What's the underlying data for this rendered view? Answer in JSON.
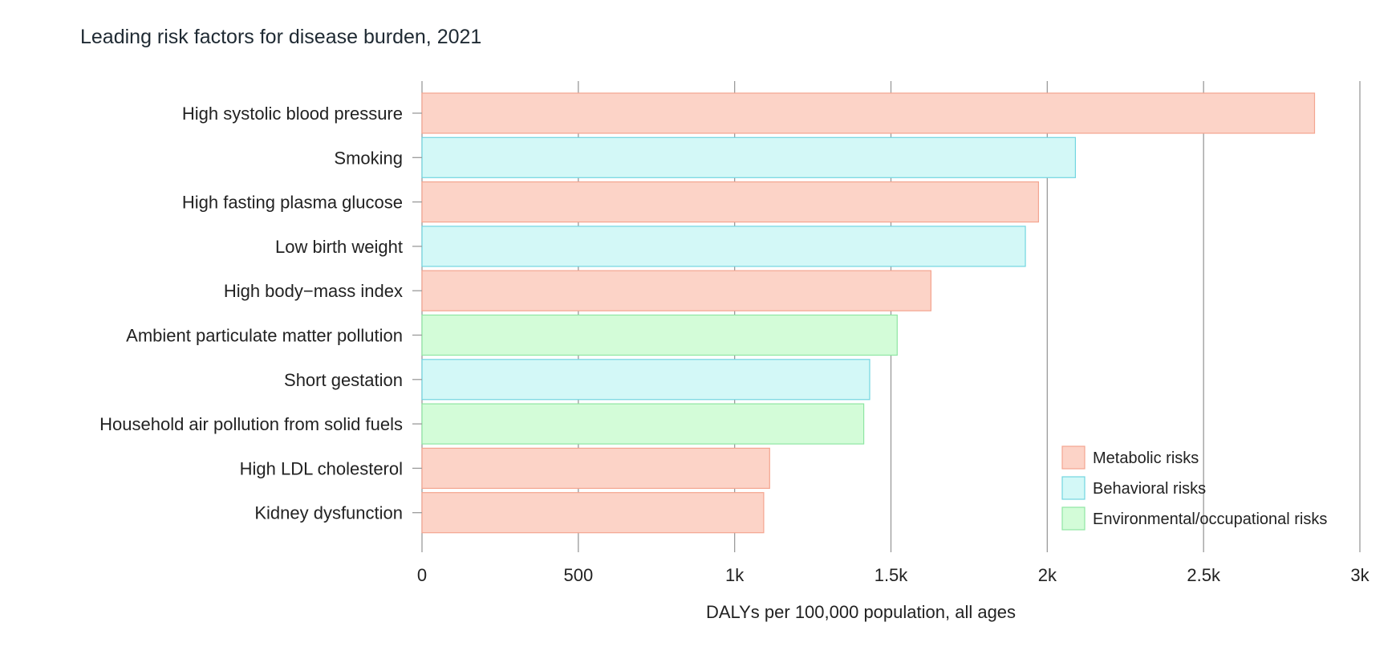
{
  "chart_data": {
    "type": "bar",
    "orientation": "horizontal",
    "title": "Leading risk factors for disease burden, 2021",
    "xlabel": "DALYs per 100,000 population, all ages",
    "ylabel": "",
    "xlim": [
      0,
      3000
    ],
    "xticks": [
      0,
      500,
      1000,
      1500,
      2000,
      2500,
      3000
    ],
    "xtick_labels": [
      "0",
      "500",
      "1k",
      "1.5k",
      "2k",
      "2.5k",
      "3k"
    ],
    "grid": "vertical",
    "legend_position": "bottom-right",
    "categories": [
      "High systolic blood pressure",
      "Smoking",
      "High fasting plasma glucose",
      "Low birth weight",
      "High body−mass index",
      "Ambient particulate matter pollution",
      "Short gestation",
      "Household air pollution from solid fuels",
      "High LDL cholesterol",
      "Kidney dysfunction"
    ],
    "values": [
      2855,
      2090,
      1972,
      1930,
      1628,
      1520,
      1432,
      1413,
      1112,
      1093
    ],
    "groups": [
      "metabolic",
      "behavioral",
      "metabolic",
      "behavioral",
      "metabolic",
      "environmental",
      "behavioral",
      "environmental",
      "metabolic",
      "metabolic"
    ],
    "legend": [
      {
        "key": "metabolic",
        "label": "Metabolic risks",
        "fill": "#fcd3c7",
        "stroke": "#f4a590"
      },
      {
        "key": "behavioral",
        "label": "Behavioral risks",
        "fill": "#d3f8f7",
        "stroke": "#72d5e0"
      },
      {
        "key": "environmental",
        "label": "Environmental/occupational risks",
        "fill": "#d3fcd8",
        "stroke": "#8fe6a3"
      }
    ]
  }
}
